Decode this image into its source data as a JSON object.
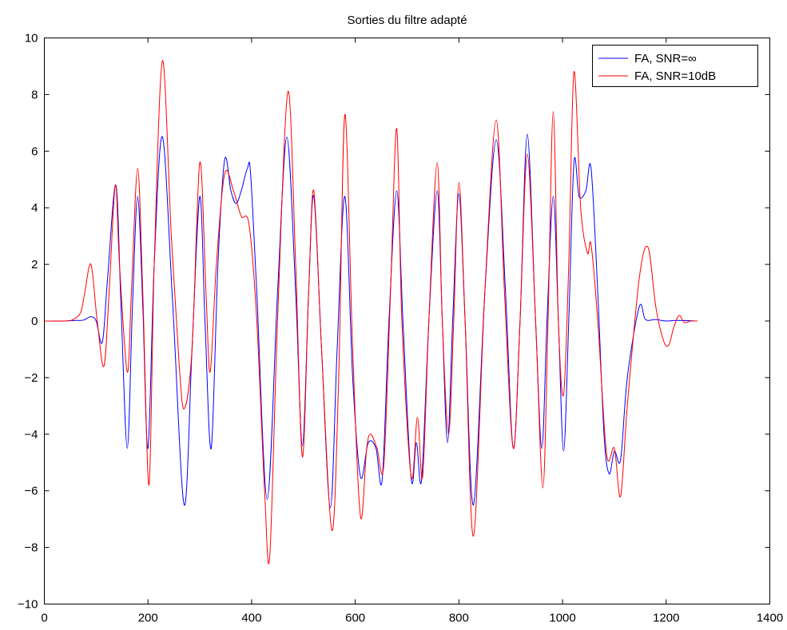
{
  "chart_data": {
    "type": "line",
    "title": "Sorties du filtre adapté",
    "xlabel": "",
    "ylabel": "",
    "xlim": [
      0,
      1400
    ],
    "ylim": [
      -10,
      10
    ],
    "xticks": [
      0,
      200,
      400,
      600,
      800,
      1000,
      1200,
      1400
    ],
    "yticks": [
      -10,
      -8,
      -6,
      -4,
      -2,
      0,
      2,
      4,
      6,
      8,
      10
    ],
    "grid": false,
    "legend_position": "top-right",
    "series": [
      {
        "name": "FA, SNR=∞",
        "color": "#0000ff",
        "points": [
          [
            0,
            0
          ],
          [
            40,
            0
          ],
          [
            60,
            0.02
          ],
          [
            75,
            0.03
          ],
          [
            90,
            0.15
          ],
          [
            100,
            0
          ],
          [
            112,
            -0.75
          ],
          [
            122,
            1.5
          ],
          [
            138,
            4.8
          ],
          [
            148,
            0.5
          ],
          [
            160,
            -4.5
          ],
          [
            170,
            0.5
          ],
          [
            180,
            4.4
          ],
          [
            190,
            0.5
          ],
          [
            200,
            -4.5
          ],
          [
            212,
            2
          ],
          [
            228,
            6.5
          ],
          [
            248,
            0.5
          ],
          [
            270,
            -6.5
          ],
          [
            285,
            -1
          ],
          [
            300,
            4.4
          ],
          [
            310,
            0
          ],
          [
            322,
            -4.5
          ],
          [
            335,
            2
          ],
          [
            348,
            5.7
          ],
          [
            360,
            4.6
          ],
          [
            370,
            4.15
          ],
          [
            380,
            4.6
          ],
          [
            392,
            5.4
          ],
          [
            398,
            5.2
          ],
          [
            410,
            1
          ],
          [
            430,
            -6.3
          ],
          [
            450,
            1
          ],
          [
            468,
            6.5
          ],
          [
            485,
            1
          ],
          [
            498,
            -4.4
          ],
          [
            510,
            1
          ],
          [
            520,
            4.4
          ],
          [
            535,
            -1
          ],
          [
            552,
            -6.6
          ],
          [
            565,
            -1
          ],
          [
            580,
            4.4
          ],
          [
            595,
            -2
          ],
          [
            610,
            -5.5
          ],
          [
            625,
            -4.3
          ],
          [
            640,
            -4.5
          ],
          [
            652,
            -5.6
          ],
          [
            665,
            0
          ],
          [
            680,
            4.6
          ],
          [
            692,
            0
          ],
          [
            708,
            -5.6
          ],
          [
            718,
            -4.3
          ],
          [
            728,
            -5.6
          ],
          [
            742,
            0
          ],
          [
            758,
            4.6
          ],
          [
            768,
            0
          ],
          [
            778,
            -4.3
          ],
          [
            788,
            0
          ],
          [
            800,
            4.5
          ],
          [
            812,
            0
          ],
          [
            828,
            -6.5
          ],
          [
            850,
            1
          ],
          [
            872,
            6.4
          ],
          [
            890,
            1
          ],
          [
            905,
            -4.5
          ],
          [
            918,
            0
          ],
          [
            932,
            6.6
          ],
          [
            948,
            0
          ],
          [
            960,
            -4.5
          ],
          [
            970,
            0
          ],
          [
            982,
            4.4
          ],
          [
            992,
            0
          ],
          [
            1002,
            -4.6
          ],
          [
            1012,
            0
          ],
          [
            1022,
            5.6
          ],
          [
            1032,
            4.4
          ],
          [
            1045,
            4.6
          ],
          [
            1055,
            5.4
          ],
          [
            1068,
            1
          ],
          [
            1080,
            -4
          ],
          [
            1090,
            -5.4
          ],
          [
            1100,
            -4.6
          ],
          [
            1112,
            -4.9
          ],
          [
            1125,
            -2
          ],
          [
            1148,
            0.5
          ],
          [
            1160,
            0.05
          ],
          [
            1180,
            0.05
          ],
          [
            1200,
            0
          ],
          [
            1220,
            0.02
          ],
          [
            1260,
            0
          ]
        ]
      },
      {
        "name": "FA, SNR=10dB",
        "color": "#ff0000",
        "points": [
          [
            0,
            0
          ],
          [
            40,
            0
          ],
          [
            55,
            0.05
          ],
          [
            70,
            0.3
          ],
          [
            78,
            1
          ],
          [
            90,
            2
          ],
          [
            102,
            0
          ],
          [
            115,
            -1.6
          ],
          [
            125,
            1
          ],
          [
            137,
            4.8
          ],
          [
            145,
            2
          ],
          [
            160,
            -1.8
          ],
          [
            168,
            1
          ],
          [
            180,
            5.4
          ],
          [
            190,
            1
          ],
          [
            202,
            -5.8
          ],
          [
            212,
            2
          ],
          [
            228,
            9.2
          ],
          [
            245,
            3
          ],
          [
            260,
            -1.5
          ],
          [
            270,
            -3.1
          ],
          [
            285,
            -1
          ],
          [
            300,
            5.6
          ],
          [
            312,
            1
          ],
          [
            320,
            -1.8
          ],
          [
            332,
            2
          ],
          [
            348,
            5.2
          ],
          [
            365,
            4.6
          ],
          [
            380,
            3.7
          ],
          [
            395,
            3.4
          ],
          [
            410,
            0
          ],
          [
            425,
            -6
          ],
          [
            435,
            -8.3
          ],
          [
            450,
            0
          ],
          [
            470,
            8.1
          ],
          [
            485,
            2
          ],
          [
            498,
            -4.8
          ],
          [
            510,
            1
          ],
          [
            520,
            4.6
          ],
          [
            535,
            -1
          ],
          [
            555,
            -7.4
          ],
          [
            568,
            -2
          ],
          [
            580,
            7.3
          ],
          [
            595,
            -1
          ],
          [
            610,
            -6.9
          ],
          [
            622,
            -4.5
          ],
          [
            630,
            -4
          ],
          [
            642,
            -4.5
          ],
          [
            655,
            -5.1
          ],
          [
            668,
            1
          ],
          [
            680,
            6.8
          ],
          [
            690,
            0
          ],
          [
            708,
            -5.5
          ],
          [
            720,
            -3.4
          ],
          [
            730,
            -5.5
          ],
          [
            742,
            0
          ],
          [
            758,
            5.6
          ],
          [
            768,
            0
          ],
          [
            780,
            -4
          ],
          [
            790,
            0
          ],
          [
            800,
            4.9
          ],
          [
            812,
            0
          ],
          [
            828,
            -7.6
          ],
          [
            850,
            1
          ],
          [
            872,
            7.1
          ],
          [
            888,
            1
          ],
          [
            905,
            -4.5
          ],
          [
            918,
            0
          ],
          [
            932,
            5.9
          ],
          [
            948,
            0
          ],
          [
            962,
            -5.9
          ],
          [
            972,
            0
          ],
          [
            982,
            7.4
          ],
          [
            992,
            0
          ],
          [
            1002,
            -2.6
          ],
          [
            1012,
            2
          ],
          [
            1022,
            8.8
          ],
          [
            1035,
            4
          ],
          [
            1048,
            2.4
          ],
          [
            1055,
            2.7
          ],
          [
            1068,
            0
          ],
          [
            1085,
            -4.7
          ],
          [
            1100,
            -4.5
          ],
          [
            1112,
            -6.2
          ],
          [
            1125,
            -3
          ],
          [
            1148,
            1.5
          ],
          [
            1165,
            2.6
          ],
          [
            1180,
            0.5
          ],
          [
            1195,
            -0.7
          ],
          [
            1205,
            -0.85
          ],
          [
            1215,
            -0.2
          ],
          [
            1225,
            0.2
          ],
          [
            1235,
            -0.05
          ],
          [
            1248,
            0
          ],
          [
            1260,
            0
          ]
        ]
      }
    ]
  }
}
